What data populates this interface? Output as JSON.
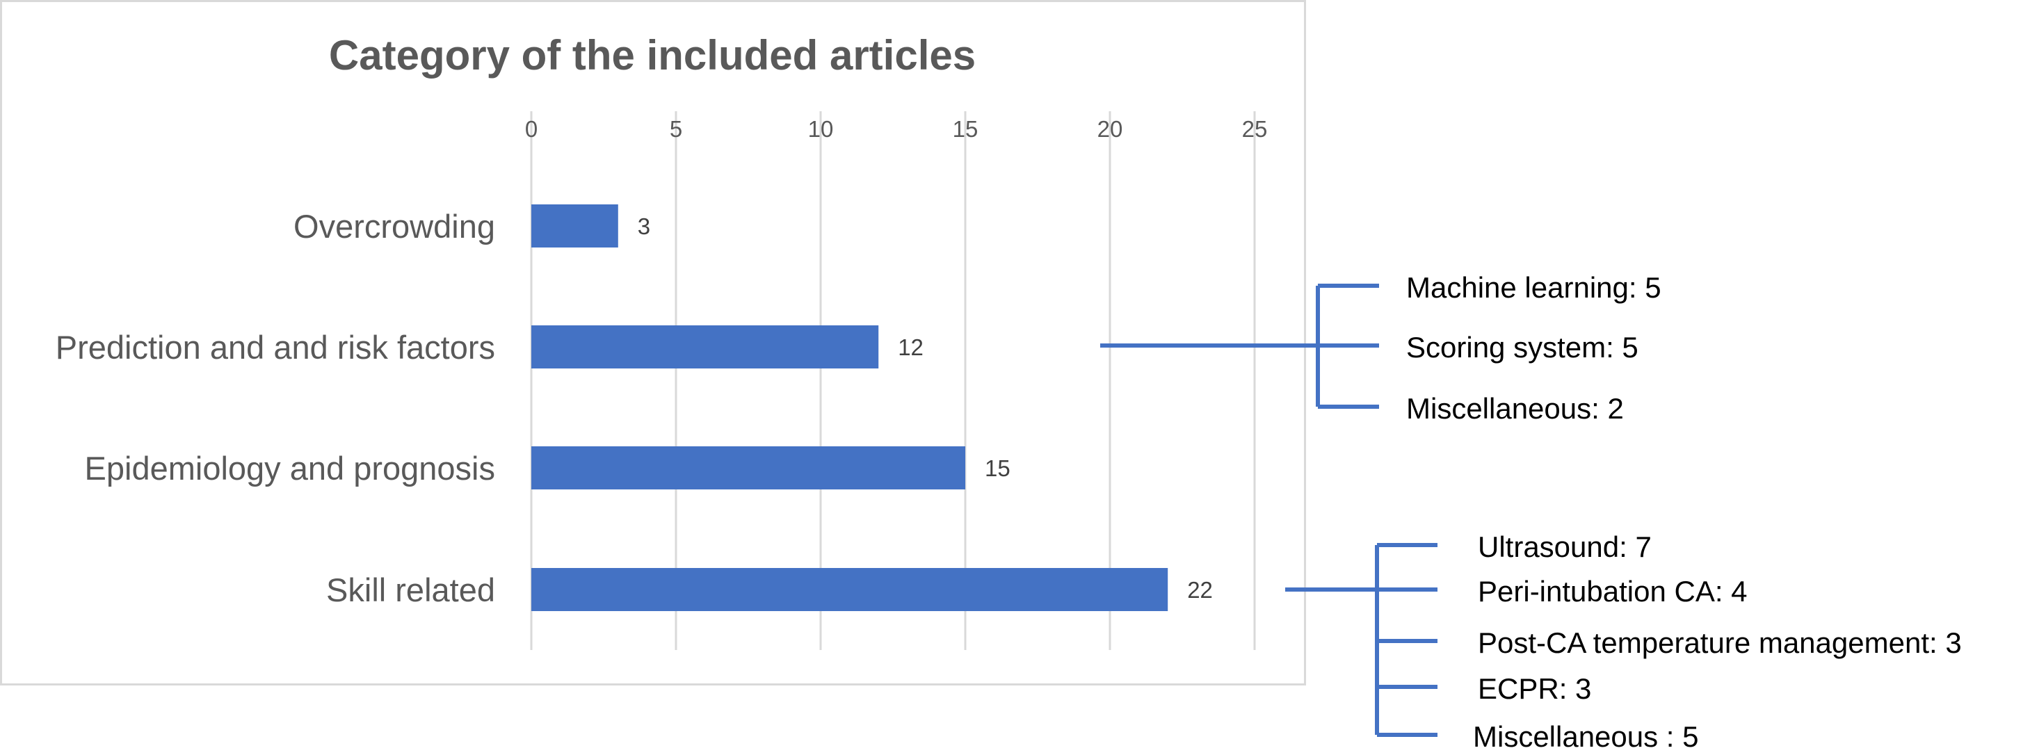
{
  "chart_data": {
    "type": "bar",
    "orientation": "horizontal",
    "title": "Category of the included articles",
    "categories": [
      "Overcrowding",
      "Prediction and and risk factors",
      "Epidemiology and prognosis",
      "Skill related"
    ],
    "values": [
      3,
      12,
      15,
      22
    ],
    "data_labels": [
      "3",
      "12",
      "15",
      "22"
    ],
    "xlim": [
      0,
      26
    ],
    "xticks": [
      0,
      5,
      10,
      15,
      20,
      25
    ],
    "xtick_labels": [
      "0",
      "5",
      "10",
      "15",
      "20",
      "25"
    ],
    "x_axis_position": "top",
    "grid": "vertical",
    "legend": "none",
    "colors": {
      "bar": "#4472c4",
      "bracket": "#4472c4",
      "gridline": "#d9d9d9",
      "border": "#d9d9d9",
      "title": "#595959",
      "label": "#595959",
      "data_label": "#404040",
      "annotation": "#000000"
    },
    "annotations": [
      {
        "category": "Prediction and and risk factors",
        "items": [
          "Machine learning: 5",
          "Scoring system: 5",
          "Miscellaneous: 2"
        ]
      },
      {
        "category": "Skill related",
        "items": [
          "Ultrasound: 7",
          "Peri-intubation CA: 4",
          "Post-CA temperature management: 3",
          "ECPR: 3",
          "Miscellaneous : 5"
        ]
      }
    ]
  }
}
